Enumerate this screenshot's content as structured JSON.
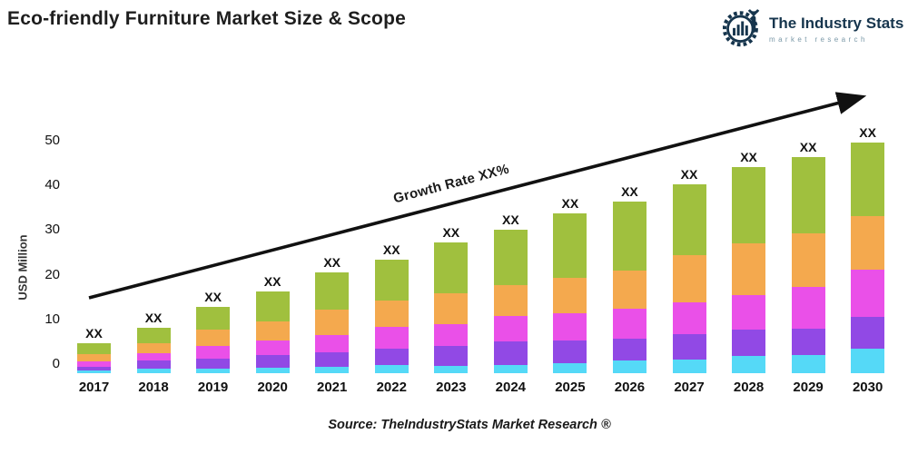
{
  "header": {
    "title": "Eco-friendly Furniture Market Size & Scope"
  },
  "logo": {
    "brand": "The Industry Stats",
    "tagline": "market research",
    "icon": "gear-wrench-chart-icon",
    "brand_color": "#16354d",
    "tagline_color": "#7b99a8"
  },
  "annotations": {
    "growth_label": "Growth Rate XX%",
    "bar_value_label": "XX"
  },
  "footer": {
    "source": "Source: TheIndustryStats Market Research ®"
  },
  "chart_data": {
    "type": "bar",
    "stacked": true,
    "title": "Eco-friendly Furniture Market Size & Scope",
    "xlabel": "",
    "ylabel": "USD Million",
    "ylim": [
      0,
      50
    ],
    "yticks": [
      0,
      10,
      20,
      30,
      40,
      50
    ],
    "grid": false,
    "legend_position": "none",
    "bar_value_label": "XX",
    "categories": [
      "2017",
      "2018",
      "2019",
      "2020",
      "2021",
      "2022",
      "2023",
      "2024",
      "2025",
      "2026",
      "2027",
      "2028",
      "2029",
      "2030"
    ],
    "series": [
      {
        "name": "segment-1-cyan",
        "color": "#55d9f7",
        "values": [
          0.7,
          1.0,
          1.1,
          1.3,
          1.4,
          1.8,
          1.7,
          1.8,
          2.3,
          2.8,
          3.0,
          3.8,
          4.0,
          5.4
        ]
      },
      {
        "name": "segment-2-purple",
        "color": "#9149e5",
        "values": [
          0.7,
          1.8,
          2.2,
          2.7,
          3.2,
          3.6,
          4.3,
          5.2,
          5.0,
          4.9,
          5.6,
          5.8,
          5.8,
          7.0
        ]
      },
      {
        "name": "segment-3-magenta",
        "color": "#ea50e8",
        "values": [
          1.2,
          1.7,
          2.8,
          3.2,
          3.8,
          4.8,
          4.8,
          5.6,
          6.0,
          6.5,
          7.0,
          7.7,
          9.3,
          10.4
        ]
      },
      {
        "name": "segment-4-orange",
        "color": "#f4a94e",
        "values": [
          1.6,
          2.2,
          3.5,
          4.3,
          5.6,
          5.8,
          6.9,
          6.8,
          7.8,
          8.4,
          10.4,
          11.3,
          11.7,
          11.8
        ]
      },
      {
        "name": "segment-5-green",
        "color": "#a0c03e",
        "values": [
          2.5,
          3.3,
          5.0,
          6.5,
          8.2,
          9.0,
          11.1,
          12.2,
          14.2,
          15.3,
          15.6,
          16.9,
          16.9,
          16.2
        ]
      }
    ],
    "totals_estimated": [
      6.7,
      10.0,
      14.6,
      18.0,
      22.2,
      25.0,
      28.8,
      31.6,
      35.3,
      37.9,
      41.6,
      45.5,
      47.7,
      50.8
    ],
    "annotation_arrow": {
      "from_value_year": "2017",
      "to_value_year": "2030",
      "label": "Growth Rate XX%"
    }
  }
}
